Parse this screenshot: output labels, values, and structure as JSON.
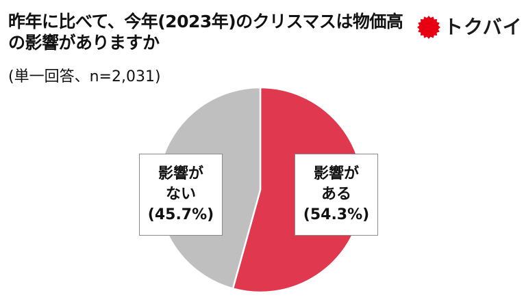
{
  "title": "昨年に比べて、今年(2023年)のクリスマスは物価高の影響がありますか",
  "subtitle": "(単一回答、n=2,031)",
  "logo": {
    "text": "トクバイ",
    "icon": "red-burst-icon",
    "color": "#e60012"
  },
  "chart_data": {
    "type": "pie",
    "title": "昨年に比べて、今年(2023年)のクリスマスは物価高の影響がありますか",
    "subtitle": "(単一回答、n=2,031)",
    "slices": [
      {
        "label_line1": "影響が",
        "label_line2": "ある",
        "percent_text": "(54.3%)",
        "value": 54.3,
        "color": "#e0384f"
      },
      {
        "label_line1": "影響が",
        "label_line2": "ない",
        "percent_text": "(45.7%)",
        "value": 45.7,
        "color": "#bfbfbf"
      }
    ],
    "start_angle": "12 o'clock",
    "direction": "clockwise"
  }
}
